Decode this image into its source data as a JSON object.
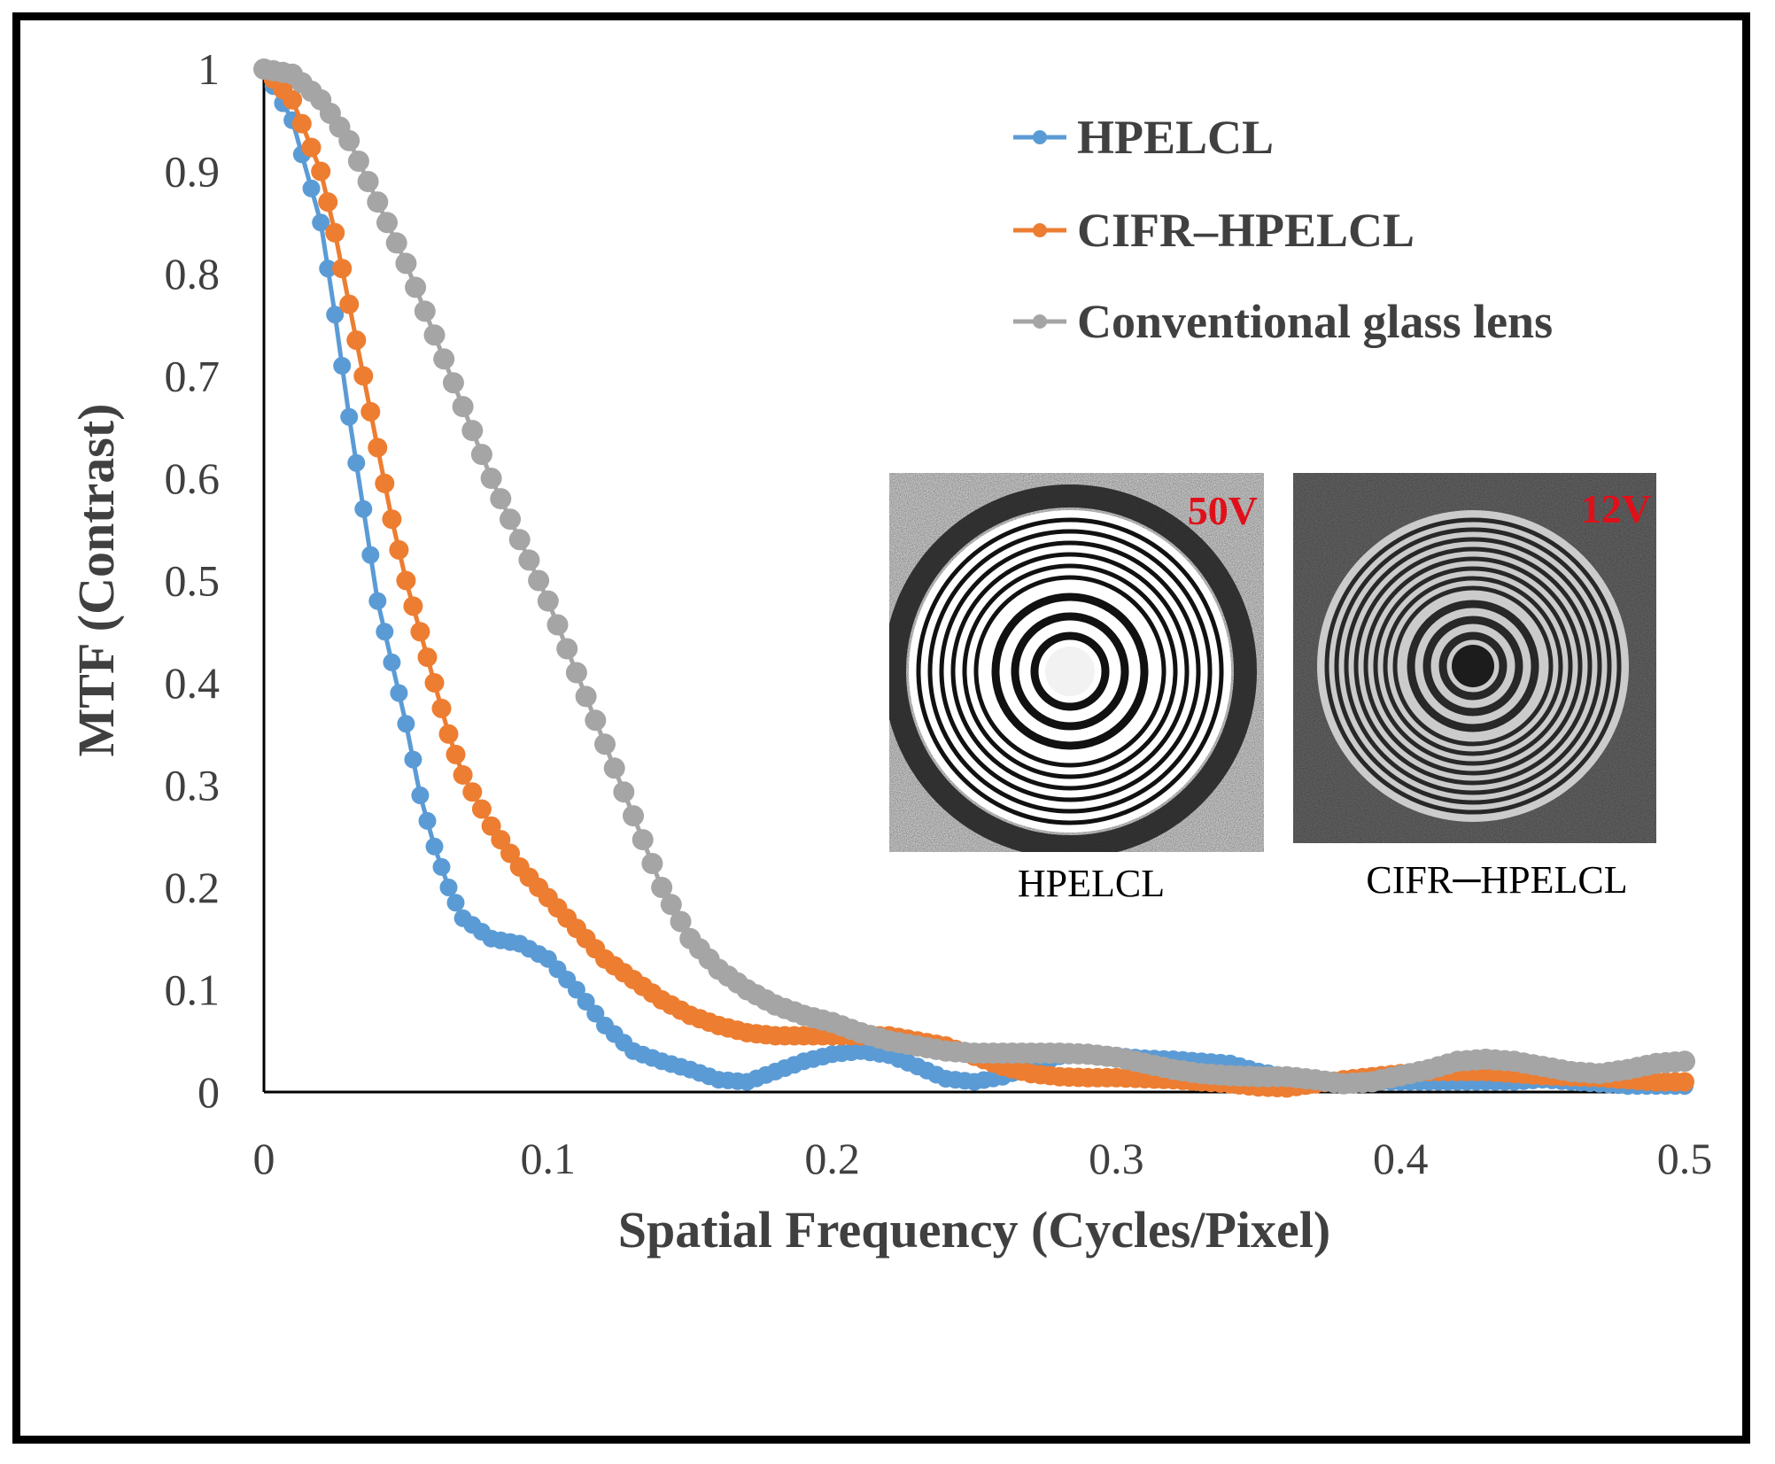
{
  "chart_data": {
    "type": "scatter",
    "title": "",
    "xlabel": "Spatial Frequency (Cycles/Pixel)",
    "ylabel": "MTF (Contrast)",
    "xlim": [
      0,
      0.5
    ],
    "ylim": [
      0,
      1
    ],
    "x_ticks": [
      "0",
      "0.1",
      "0.2",
      "0.3",
      "0.4",
      "0.5"
    ],
    "y_ticks": [
      "0",
      "0.1",
      "0.2",
      "0.3",
      "0.4",
      "0.5",
      "0.6",
      "0.7",
      "0.8",
      "0.9",
      "1"
    ],
    "grid": false,
    "legend_position": "top-right",
    "series": [
      {
        "name": "HPELCL",
        "color": "#5b9bd5",
        "points": [
          [
            0,
            1
          ],
          [
            0.01,
            0.95
          ],
          [
            0.02,
            0.85
          ],
          [
            0.025,
            0.76
          ],
          [
            0.03,
            0.66
          ],
          [
            0.035,
            0.57
          ],
          [
            0.04,
            0.48
          ],
          [
            0.045,
            0.42
          ],
          [
            0.05,
            0.36
          ],
          [
            0.055,
            0.29
          ],
          [
            0.06,
            0.24
          ],
          [
            0.065,
            0.2
          ],
          [
            0.07,
            0.17
          ],
          [
            0.08,
            0.15
          ],
          [
            0.09,
            0.145
          ],
          [
            0.1,
            0.13
          ],
          [
            0.11,
            0.1
          ],
          [
            0.12,
            0.065
          ],
          [
            0.13,
            0.04
          ],
          [
            0.14,
            0.03
          ],
          [
            0.15,
            0.022
          ],
          [
            0.16,
            0.012
          ],
          [
            0.17,
            0.01
          ],
          [
            0.18,
            0.02
          ],
          [
            0.19,
            0.03
          ],
          [
            0.2,
            0.037
          ],
          [
            0.21,
            0.04
          ],
          [
            0.22,
            0.036
          ],
          [
            0.23,
            0.025
          ],
          [
            0.24,
            0.013
          ],
          [
            0.25,
            0.01
          ],
          [
            0.26,
            0.015
          ],
          [
            0.27,
            0.025
          ],
          [
            0.28,
            0.035
          ],
          [
            0.29,
            0.037
          ],
          [
            0.3,
            0.035
          ],
          [
            0.31,
            0.033
          ],
          [
            0.32,
            0.032
          ],
          [
            0.33,
            0.03
          ],
          [
            0.34,
            0.028
          ],
          [
            0.35,
            0.02
          ],
          [
            0.36,
            0.015
          ],
          [
            0.37,
            0.01
          ],
          [
            0.38,
            0.008
          ],
          [
            0.39,
            0.01
          ],
          [
            0.4,
            0.01
          ],
          [
            0.41,
            0.01
          ],
          [
            0.42,
            0.01
          ],
          [
            0.43,
            0.01
          ],
          [
            0.44,
            0.01
          ],
          [
            0.45,
            0.012
          ],
          [
            0.46,
            0.01
          ],
          [
            0.47,
            0.008
          ],
          [
            0.48,
            0.006
          ],
          [
            0.49,
            0.006
          ],
          [
            0.5,
            0.006
          ]
        ]
      },
      {
        "name": "CIFR–HPELCL",
        "color": "#ed7d31",
        "points": [
          [
            0,
            1
          ],
          [
            0.01,
            0.97
          ],
          [
            0.02,
            0.9
          ],
          [
            0.025,
            0.84
          ],
          [
            0.03,
            0.77
          ],
          [
            0.035,
            0.7
          ],
          [
            0.04,
            0.63
          ],
          [
            0.045,
            0.56
          ],
          [
            0.05,
            0.5
          ],
          [
            0.055,
            0.45
          ],
          [
            0.06,
            0.4
          ],
          [
            0.065,
            0.35
          ],
          [
            0.07,
            0.31
          ],
          [
            0.08,
            0.26
          ],
          [
            0.09,
            0.22
          ],
          [
            0.1,
            0.19
          ],
          [
            0.11,
            0.16
          ],
          [
            0.12,
            0.13
          ],
          [
            0.13,
            0.11
          ],
          [
            0.14,
            0.09
          ],
          [
            0.15,
            0.075
          ],
          [
            0.16,
            0.065
          ],
          [
            0.17,
            0.058
          ],
          [
            0.18,
            0.055
          ],
          [
            0.19,
            0.055
          ],
          [
            0.2,
            0.055
          ],
          [
            0.21,
            0.055
          ],
          [
            0.22,
            0.055
          ],
          [
            0.23,
            0.05
          ],
          [
            0.24,
            0.045
          ],
          [
            0.25,
            0.035
          ],
          [
            0.26,
            0.025
          ],
          [
            0.27,
            0.018
          ],
          [
            0.28,
            0.015
          ],
          [
            0.29,
            0.014
          ],
          [
            0.3,
            0.014
          ],
          [
            0.31,
            0.013
          ],
          [
            0.32,
            0.012
          ],
          [
            0.33,
            0.01
          ],
          [
            0.34,
            0.008
          ],
          [
            0.35,
            0.005
          ],
          [
            0.36,
            0.004
          ],
          [
            0.37,
            0.008
          ],
          [
            0.38,
            0.012
          ],
          [
            0.39,
            0.015
          ],
          [
            0.4,
            0.018
          ],
          [
            0.41,
            0.02
          ],
          [
            0.42,
            0.02
          ],
          [
            0.43,
            0.02
          ],
          [
            0.44,
            0.018
          ],
          [
            0.45,
            0.016
          ],
          [
            0.46,
            0.015
          ],
          [
            0.47,
            0.014
          ],
          [
            0.48,
            0.012
          ],
          [
            0.49,
            0.01
          ],
          [
            0.5,
            0.01
          ]
        ]
      },
      {
        "name": "Conventional glass lens",
        "color": "#a5a5a5",
        "points": [
          [
            0,
            1
          ],
          [
            0.01,
            0.995
          ],
          [
            0.02,
            0.97
          ],
          [
            0.03,
            0.93
          ],
          [
            0.04,
            0.87
          ],
          [
            0.05,
            0.81
          ],
          [
            0.06,
            0.74
          ],
          [
            0.07,
            0.67
          ],
          [
            0.08,
            0.6
          ],
          [
            0.09,
            0.54
          ],
          [
            0.1,
            0.48
          ],
          [
            0.11,
            0.41
          ],
          [
            0.12,
            0.34
          ],
          [
            0.13,
            0.27
          ],
          [
            0.14,
            0.2
          ],
          [
            0.15,
            0.15
          ],
          [
            0.16,
            0.12
          ],
          [
            0.17,
            0.1
          ],
          [
            0.18,
            0.085
          ],
          [
            0.19,
            0.075
          ],
          [
            0.2,
            0.068
          ],
          [
            0.21,
            0.058
          ],
          [
            0.22,
            0.05
          ],
          [
            0.23,
            0.045
          ],
          [
            0.24,
            0.04
          ],
          [
            0.25,
            0.038
          ],
          [
            0.26,
            0.038
          ],
          [
            0.27,
            0.038
          ],
          [
            0.28,
            0.038
          ],
          [
            0.29,
            0.037
          ],
          [
            0.3,
            0.034
          ],
          [
            0.31,
            0.028
          ],
          [
            0.32,
            0.022
          ],
          [
            0.33,
            0.018
          ],
          [
            0.34,
            0.016
          ],
          [
            0.35,
            0.015
          ],
          [
            0.36,
            0.015
          ],
          [
            0.37,
            0.012
          ],
          [
            0.38,
            0.008
          ],
          [
            0.39,
            0.01
          ],
          [
            0.4,
            0.016
          ],
          [
            0.41,
            0.022
          ],
          [
            0.42,
            0.03
          ],
          [
            0.43,
            0.032
          ],
          [
            0.44,
            0.03
          ],
          [
            0.45,
            0.025
          ],
          [
            0.46,
            0.02
          ],
          [
            0.47,
            0.018
          ],
          [
            0.48,
            0.022
          ],
          [
            0.49,
            0.028
          ],
          [
            0.5,
            0.03
          ]
        ]
      }
    ]
  },
  "insets": [
    {
      "caption": "HPELCL",
      "voltage": "50V"
    },
    {
      "caption": "CIFR─HPELCL",
      "voltage": "12V"
    }
  ]
}
